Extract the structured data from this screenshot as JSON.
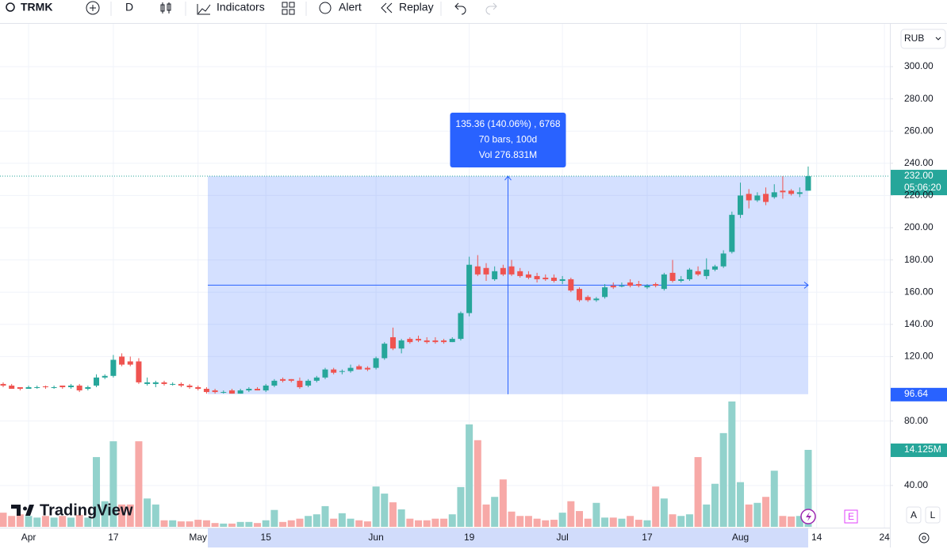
{
  "toolbar": {
    "symbol": "TRMK",
    "interval": "D",
    "indicators": "Indicators",
    "alert": "Alert",
    "replay": "Replay"
  },
  "chart_data": {
    "type": "candlestick",
    "currency": "RUB",
    "categories": [
      null,
      null,
      null,
      "Apr",
      null,
      null,
      null,
      null,
      null,
      null,
      null,
      null,
      null,
      "17",
      null,
      null,
      null,
      null,
      null,
      null,
      null,
      null,
      null,
      "May",
      null,
      null,
      null,
      null,
      null,
      null,
      null,
      "15",
      null,
      null,
      null,
      null,
      null,
      null,
      null,
      null,
      null,
      null,
      null,
      null,
      "Jun",
      null,
      null,
      null,
      null,
      null,
      null,
      null,
      null,
      null,
      null,
      "19",
      null,
      null,
      null,
      null,
      null,
      null,
      null,
      null,
      null,
      null,
      "Jul",
      null,
      null,
      null,
      null,
      null,
      null,
      null,
      null,
      null,
      "17",
      null,
      null,
      null,
      null,
      null,
      null,
      null,
      null,
      null,
      null,
      "Aug",
      null,
      null,
      null,
      null,
      null,
      null,
      null,
      null,
      "14",
      null,
      null,
      null,
      null,
      null,
      null,
      null,
      "24"
    ],
    "open": [
      103,
      102,
      101,
      100,
      101,
      101.5,
      101,
      102,
      101,
      102,
      100,
      102,
      107,
      108,
      120,
      117,
      117,
      103,
      103,
      104,
      103,
      103,
      102,
      101,
      100,
      99,
      98,
      99,
      97,
      99,
      100,
      99,
      102,
      106,
      106,
      105,
      102,
      105,
      107,
      112,
      111,
      111,
      114,
      113,
      113,
      119,
      132,
      125,
      131,
      131,
      130,
      130,
      130,
      129,
      131,
      147,
      176,
      175,
      168,
      175,
      176,
      173,
      171,
      170,
      169,
      169,
      167,
      168,
      162,
      157,
      155,
      157,
      164,
      164,
      166,
      165,
      163,
      165,
      162,
      172,
      167,
      168,
      173,
      170,
      174,
      176,
      185,
      208,
      221,
      217,
      221,
      219,
      223,
      223,
      221,
      223,
      null,
      null,
      null,
      null,
      null,
      null,
      null,
      null,
      null
    ],
    "high": [
      104,
      103,
      101,
      102,
      102,
      102,
      102,
      102,
      103,
      103,
      102,
      109,
      109,
      121,
      122,
      120,
      119,
      107,
      105,
      105,
      104,
      104,
      103,
      102,
      101,
      100,
      99,
      100,
      100,
      101,
      101,
      103,
      106,
      107,
      106,
      107,
      106,
      108,
      113,
      113,
      112,
      115,
      115,
      114,
      120,
      129,
      138,
      131,
      132,
      133,
      132,
      132,
      131,
      132,
      148,
      182,
      183,
      178,
      176,
      177,
      180,
      175,
      173,
      172,
      171,
      171,
      170,
      169,
      163,
      158,
      157,
      165,
      166,
      166,
      168,
      167,
      165,
      166,
      172,
      180,
      170,
      175,
      176,
      181,
      177,
      186,
      210,
      228,
      224,
      222,
      225,
      227,
      232,
      224,
      225,
      238,
      null,
      null,
      null,
      null,
      null,
      null,
      null,
      null,
      null
    ],
    "low": [
      101,
      100,
      99,
      100,
      100,
      100,
      100,
      100,
      100,
      98,
      99,
      101,
      106,
      107,
      114,
      114,
      103,
      102,
      101,
      102,
      102,
      101,
      100,
      99,
      97,
      97,
      97,
      97,
      97,
      98,
      99,
      98,
      101,
      104,
      104,
      100,
      101,
      104,
      106,
      109,
      109,
      110,
      112,
      111,
      112,
      118,
      124,
      122,
      128,
      129,
      128,
      128,
      128,
      129,
      130,
      145,
      170,
      167,
      167,
      170,
      170,
      169,
      168,
      166,
      167,
      166,
      165,
      160,
      154,
      154,
      154,
      156,
      162,
      163,
      163,
      163,
      162,
      163,
      161,
      166,
      166,
      167,
      170,
      168,
      173,
      175,
      184,
      206,
      212,
      216,
      214,
      218,
      218,
      220,
      219,
      223,
      null,
      null,
      null,
      null,
      null,
      null,
      null,
      null,
      null
    ],
    "close": [
      102,
      100,
      100,
      101,
      101,
      101,
      101,
      101,
      102,
      99,
      101,
      107,
      108,
      118,
      115,
      115,
      104,
      104,
      104,
      103,
      103,
      102,
      101,
      100,
      98,
      98,
      98,
      97,
      99,
      100,
      99,
      102,
      105,
      105,
      105,
      101,
      105,
      107,
      112,
      110,
      111,
      113,
      112,
      112,
      119,
      128,
      125,
      130,
      129,
      130,
      129,
      129,
      129,
      131,
      147,
      177,
      171,
      171,
      173,
      171,
      171,
      170,
      169,
      168,
      168,
      167,
      168,
      161,
      155,
      155,
      156,
      163,
      163,
      164,
      164,
      164,
      164,
      164,
      171,
      167,
      168,
      174,
      171,
      174,
      176,
      184,
      208,
      220,
      217,
      220,
      216,
      222,
      222,
      221,
      222,
      232,
      null,
      null,
      null,
      null,
      null,
      null,
      null,
      null,
      null
    ],
    "volume": [
      2.6,
      2.0,
      2.3,
      2.0,
      1.7,
      2.0,
      1.7,
      2.0,
      1.7,
      2.2,
      1.7,
      12.8,
      4.7,
      15.7,
      4.1,
      4.1,
      15.7,
      5.2,
      4.1,
      1.2,
      1.2,
      1.0,
      1.0,
      1.3,
      1.2,
      0.7,
      0.6,
      0.6,
      0.9,
      0.9,
      0.7,
      1.2,
      3.1,
      0.9,
      1.2,
      1.5,
      2.0,
      2.3,
      3.8,
      1.5,
      2.5,
      1.5,
      1.2,
      1.0,
      7.4,
      6.1,
      4.5,
      3.2,
      1.5,
      1.2,
      1.2,
      1.5,
      1.5,
      2.3,
      7.3,
      18.8,
      15.9,
      4.1,
      5.5,
      8.7,
      2.8,
      2.0,
      2.0,
      1.5,
      1.2,
      1.3,
      2.6,
      4.7,
      2.9,
      1.5,
      4.4,
      1.7,
      1.7,
      1.5,
      2.0,
      1.3,
      1.2,
      7.4,
      5.2,
      2.3,
      2.0,
      2.3,
      12.8,
      4.1,
      7.9,
      17.2,
      23.0,
      8.2,
      4.1,
      4.4,
      5.5,
      10.3,
      2.0,
      1.9,
      2.0,
      14.125,
      null,
      null,
      null,
      null,
      null,
      null,
      null,
      null,
      null
    ],
    "up_color": "#26a69a",
    "down_color": "#ef5350",
    "volume_up_color": "#92d2cc",
    "volume_down_color": "#f7a9a7",
    "ylim": [
      13.8,
      326.6
    ],
    "yticks": [
      {
        "value": 300,
        "label": "300.00"
      },
      {
        "value": 280,
        "label": "280.00"
      },
      {
        "value": 260,
        "label": "260.00"
      },
      {
        "value": 240,
        "label": "240.00"
      },
      {
        "value": 220,
        "label": "220.00"
      },
      {
        "value": 200,
        "label": "200.00"
      },
      {
        "value": 180,
        "label": "180.00"
      },
      {
        "value": 160,
        "label": "160.00"
      },
      {
        "value": 140,
        "label": "140.00"
      },
      {
        "value": 120,
        "label": "120.00"
      },
      {
        "value": 80,
        "label": "80.00"
      },
      {
        "value": 40,
        "label": "40.00"
      }
    ],
    "y2lim": [
      0,
      92.3
    ],
    "last_price_label": "232.00",
    "countdown": "05:06:20",
    "last_volume_label": "14.125M",
    "measure": {
      "low": 96.64,
      "lines": [
        "135.36 (140.06%) , 6768",
        "70 bars, 100d",
        "Vol 276.831M"
      ]
    }
  },
  "branding": "TradingView",
  "buttons": {
    "auto": "A",
    "log": "L"
  },
  "event_marker": "E"
}
